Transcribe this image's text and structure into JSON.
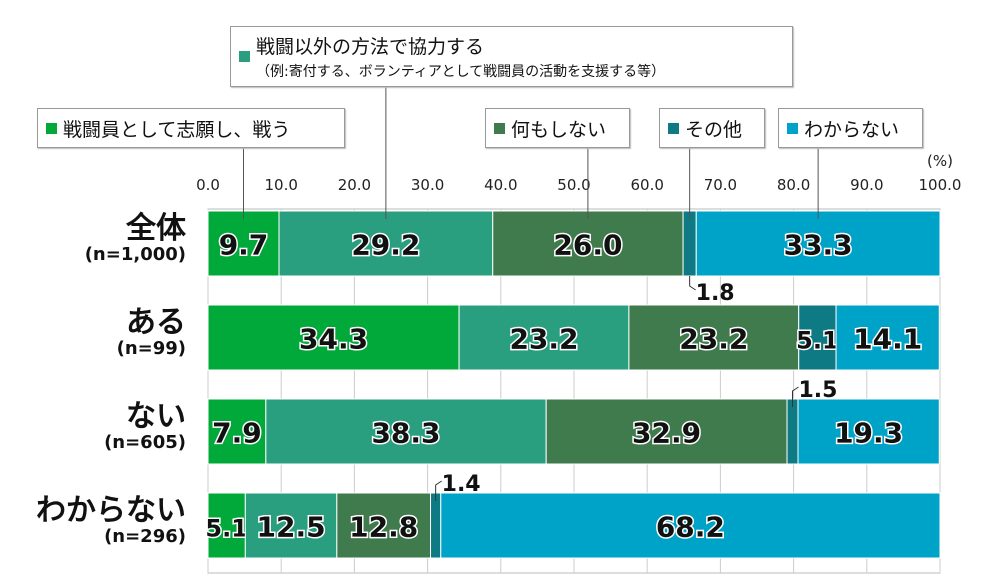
{
  "chart_data": {
    "type": "bar",
    "orientation": "horizontal",
    "stacked": true,
    "unit_label": "(%)",
    "xlim": [
      0,
      100
    ],
    "x_ticks": [
      "0.0",
      "10.0",
      "20.0",
      "30.0",
      "40.0",
      "50.0",
      "60.0",
      "70.0",
      "80.0",
      "90.0",
      "100.0"
    ],
    "grid": true,
    "categories": [
      {
        "label": "全体",
        "n": "(n=1,000)"
      },
      {
        "label": "ある",
        "n": "(n=99)"
      },
      {
        "label": "ない",
        "n": "(n=605)"
      },
      {
        "label": "わからない",
        "n": "(n=296)"
      }
    ],
    "series": [
      {
        "name": "戦闘員として志願し、戦う",
        "color": "#00a93a",
        "values": [
          9.7,
          34.3,
          7.9,
          5.1
        ]
      },
      {
        "name": "戦闘以外の方法で協力する",
        "name_sub": "（例:寄付する、ボランティアとして戦闘員の活動を支援する等）",
        "color": "#2a9f80",
        "values": [
          29.2,
          23.2,
          38.3,
          12.5
        ]
      },
      {
        "name": "何もしない",
        "color": "#3f7b4c",
        "values": [
          26.0,
          23.2,
          32.9,
          12.8
        ]
      },
      {
        "name": "その他",
        "color": "#0e7a84",
        "values": [
          1.8,
          5.1,
          1.5,
          1.4
        ]
      },
      {
        "name": "わからない",
        "color": "#00a3c8",
        "values": [
          33.3,
          14.1,
          19.3,
          68.2
        ]
      }
    ]
  }
}
